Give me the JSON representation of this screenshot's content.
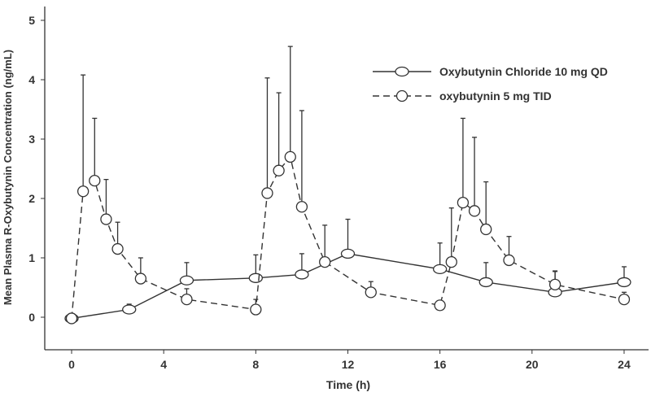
{
  "chart_data": {
    "type": "line",
    "xlabel": "Time (h)",
    "ylabel": "Mean Plasma R-Oxybutynin Concentration (ng/mL)",
    "xlim": [
      -1.2,
      25
    ],
    "ylim": [
      -0.35,
      5.2
    ],
    "xticks": [
      0,
      4,
      8,
      12,
      16,
      20,
      24
    ],
    "yticks": [
      0,
      1,
      2,
      3,
      4,
      5
    ],
    "grid": false,
    "legend_position": "top-right",
    "series": [
      {
        "name": "Oxybutynin Chloride 10 mg QD",
        "style": "solid",
        "marker": "ellipse",
        "x": [
          0,
          2.5,
          5,
          8,
          10,
          12,
          16,
          18,
          21,
          24
        ],
        "y": [
          -0.02,
          0.13,
          0.62,
          0.66,
          0.72,
          1.07,
          0.81,
          0.59,
          0.42,
          0.59
        ],
        "error_upper": [
          null,
          0.22,
          0.92,
          1.05,
          1.07,
          1.65,
          1.25,
          0.92,
          0.78,
          0.85
        ]
      },
      {
        "name": "oxybutynin 5 mg TID",
        "style": "dashed",
        "marker": "circle",
        "x": [
          0,
          0.5,
          1,
          1.5,
          2,
          3,
          5,
          8,
          8.5,
          9,
          9.5,
          10,
          11,
          13,
          16,
          16.5,
          17,
          17.5,
          18,
          19,
          21,
          24
        ],
        "y": [
          -0.02,
          2.12,
          2.3,
          1.65,
          1.15,
          0.65,
          0.3,
          0.13,
          2.09,
          2.47,
          2.7,
          1.86,
          0.93,
          0.42,
          0.2,
          0.93,
          1.93,
          1.79,
          1.48,
          0.96,
          0.55,
          0.3
        ],
        "error_upper": [
          null,
          4.08,
          3.35,
          2.32,
          1.6,
          1.0,
          0.48,
          0.3,
          4.03,
          3.78,
          4.56,
          3.48,
          1.55,
          0.6,
          null,
          1.84,
          3.35,
          3.03,
          2.28,
          1.36,
          0.77,
          0.42
        ]
      }
    ]
  }
}
